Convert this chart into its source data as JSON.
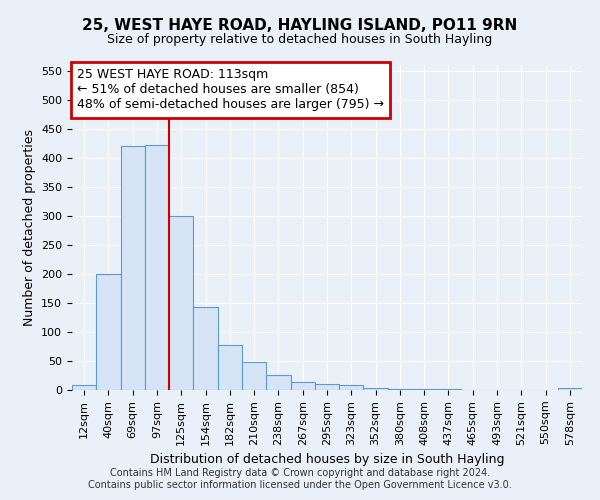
{
  "title1": "25, WEST HAYE ROAD, HAYLING ISLAND, PO11 9RN",
  "title2": "Size of property relative to detached houses in South Hayling",
  "xlabel": "Distribution of detached houses by size in South Hayling",
  "ylabel": "Number of detached properties",
  "categories": [
    "12sqm",
    "40sqm",
    "69sqm",
    "97sqm",
    "125sqm",
    "154sqm",
    "182sqm",
    "210sqm",
    "238sqm",
    "267sqm",
    "295sqm",
    "323sqm",
    "352sqm",
    "380sqm",
    "408sqm",
    "437sqm",
    "465sqm",
    "493sqm",
    "521sqm",
    "550sqm",
    "578sqm"
  ],
  "values": [
    8,
    200,
    420,
    422,
    300,
    143,
    77,
    48,
    25,
    13,
    10,
    8,
    3,
    2,
    2,
    1,
    0,
    0,
    0,
    0,
    3
  ],
  "bar_face_color": "#d6e4f5",
  "bar_edge_color": "#5b9bd5",
  "bar_width": 1.0,
  "ylim": [
    0,
    560
  ],
  "yticks": [
    0,
    50,
    100,
    150,
    200,
    250,
    300,
    350,
    400,
    450,
    500,
    550
  ],
  "red_line_x": 4.0,
  "annotation_text_line1": "25 WEST HAYE ROAD: 113sqm",
  "annotation_text_line2": "← 51% of detached houses are smaller (854)",
  "annotation_text_line3": "48% of semi-detached houses are larger (795) →",
  "annotation_box_color": "#ffffff",
  "annotation_box_edge_color": "#cc0000",
  "footer1": "Contains HM Land Registry data © Crown copyright and database right 2024.",
  "footer2": "Contains public sector information licensed under the Open Government Licence v3.0.",
  "bg_color": "#eaf0f8",
  "grid_color": "#ffffff",
  "title1_fontsize": 11,
  "title2_fontsize": 9,
  "ylabel_fontsize": 9,
  "xlabel_fontsize": 9,
  "tick_fontsize": 8,
  "footer_fontsize": 7
}
